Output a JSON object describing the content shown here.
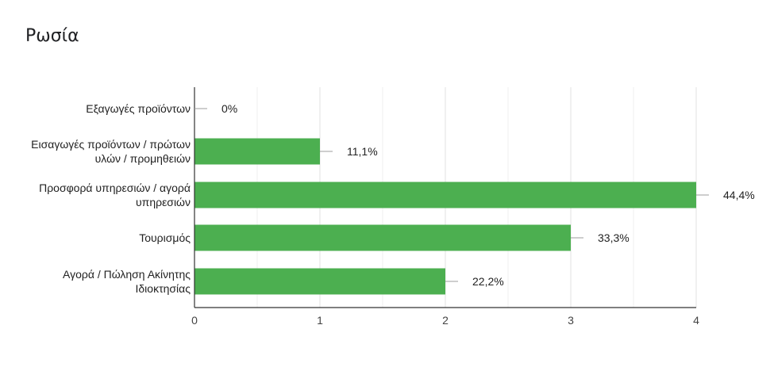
{
  "chart_data": {
    "type": "bar",
    "orientation": "horizontal",
    "title": "Ρωσία",
    "categories": [
      [
        "Εξαγωγές προϊόντων"
      ],
      [
        "Εισαγωγές προϊόντων / πρώτων",
        "υλών / προμηθειών"
      ],
      [
        "Προσφορά υπηρεσιών / αγορά",
        "υπηρεσιών"
      ],
      [
        "Τουρισμός"
      ],
      [
        "Αγορά / Πώληση Ακίνητης",
        "Ιδιοκτησίας"
      ]
    ],
    "values": [
      0,
      1,
      4,
      3,
      2
    ],
    "data_labels": [
      "0%",
      "11,1%",
      "44,4%",
      "33,3%",
      "22,2%"
    ],
    "xlim": [
      0,
      4
    ],
    "xticks": [
      "0",
      "1",
      "2",
      "3",
      "4"
    ],
    "grid": true,
    "bar_color": "#4caf50"
  }
}
